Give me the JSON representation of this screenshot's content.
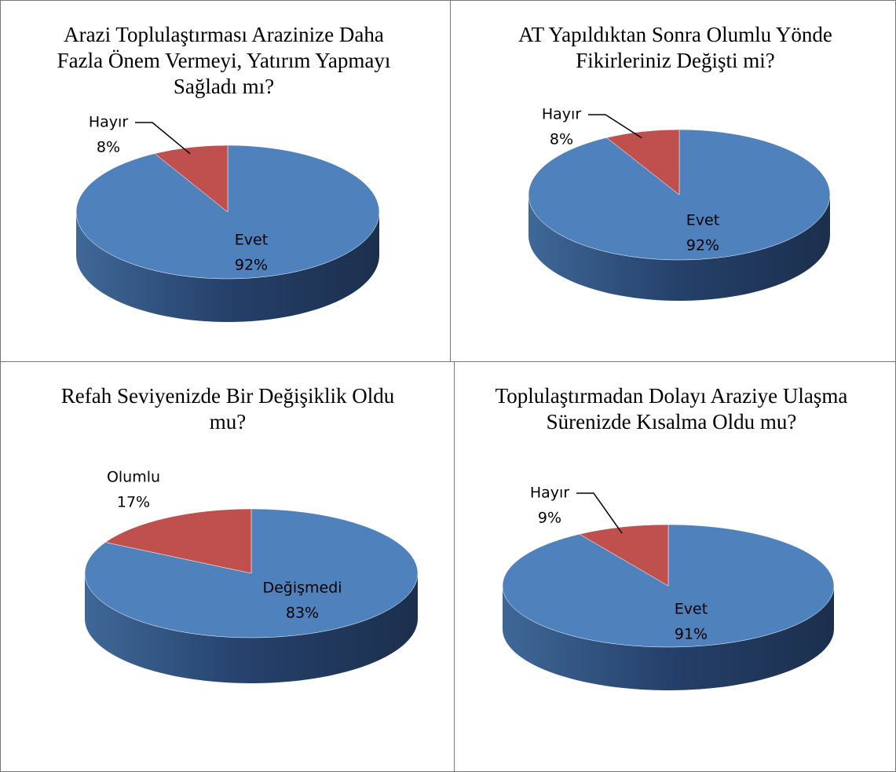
{
  "chart_data": [
    {
      "type": "pie",
      "title": "Arazi Toplulaştırması Arazinize Daha Fazla Önem Vermeyi, Yatırım Yapmayı Sağladı mı?",
      "categories": [
        "Evet",
        "Hayır"
      ],
      "values": [
        92,
        8
      ],
      "value_labels": [
        "92%",
        "8%"
      ],
      "colors": [
        "#4f81bd",
        "#c0504d"
      ]
    },
    {
      "type": "pie",
      "title": "AT Yapıldıktan Sonra Olumlu Yönde Fikirleriniz Değişti mi?",
      "categories": [
        "Evet",
        "Hayır"
      ],
      "values": [
        92,
        8
      ],
      "value_labels": [
        "92%",
        "8%"
      ],
      "colors": [
        "#4f81bd",
        "#c0504d"
      ]
    },
    {
      "type": "pie",
      "title": "Refah Seviyenizde Bir Değişiklik Oldu mu?",
      "categories": [
        "Değişmedi",
        "Olumlu"
      ],
      "values": [
        83,
        17
      ],
      "value_labels": [
        "83%",
        "17%"
      ],
      "colors": [
        "#4f81bd",
        "#c0504d"
      ]
    },
    {
      "type": "pie",
      "title": "Toplulaştırmadan Dolayı Araziye Ulaşma Sürenizde Kısalma Oldu mu?",
      "categories": [
        "Evet",
        "Hayır"
      ],
      "values": [
        91,
        9
      ],
      "value_labels": [
        "91%",
        "9%"
      ],
      "colors": [
        "#4f81bd",
        "#c0504d"
      ]
    }
  ]
}
